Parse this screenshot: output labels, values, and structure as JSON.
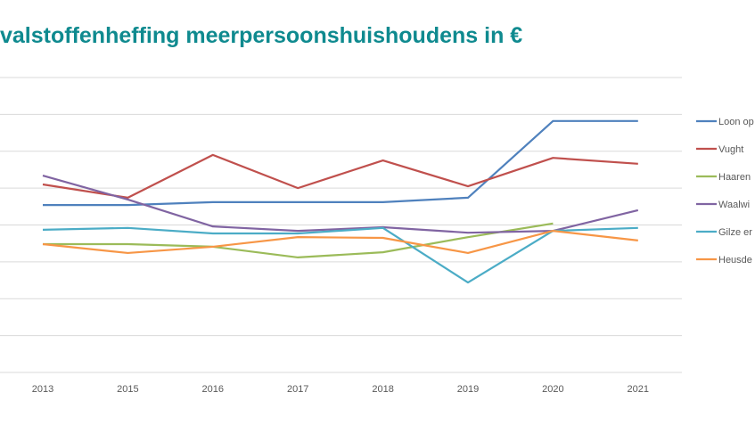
{
  "chart_data": {
    "type": "line",
    "title": "valstoffenheffing meerpersoonshuishoudens in €",
    "categories": [
      "2013",
      "2015",
      "2016",
      "2017",
      "2018",
      "2019",
      "2020",
      "2021"
    ],
    "ylim": [
      0,
      8
    ],
    "grid": true,
    "legend_position": "right",
    "series": [
      {
        "name": "Loon op",
        "color": "#4f81bd",
        "values": [
          4.54,
          4.54,
          4.62,
          4.62,
          4.62,
          4.74,
          6.82,
          6.82
        ]
      },
      {
        "name": "Vught",
        "color": "#c0504d",
        "values": [
          5.1,
          4.74,
          5.9,
          5.0,
          5.75,
          5.05,
          5.82,
          5.66
        ]
      },
      {
        "name": "Haaren",
        "color": "#9bbb59",
        "values": [
          3.48,
          3.48,
          3.41,
          3.12,
          3.26,
          3.67,
          4.04,
          null
        ]
      },
      {
        "name": "Waalwi",
        "color": "#8064a2",
        "values": [
          5.34,
          4.69,
          3.96,
          3.84,
          3.94,
          3.79,
          3.84,
          4.4
        ]
      },
      {
        "name": "Gilze er",
        "color": "#4bacc6",
        "values": [
          3.87,
          3.92,
          3.77,
          3.77,
          3.92,
          2.44,
          3.84,
          3.92
        ]
      },
      {
        "name": "Heusde",
        "color": "#f79646",
        "values": [
          3.48,
          3.24,
          3.41,
          3.67,
          3.65,
          3.24,
          3.84,
          3.58
        ]
      }
    ]
  }
}
